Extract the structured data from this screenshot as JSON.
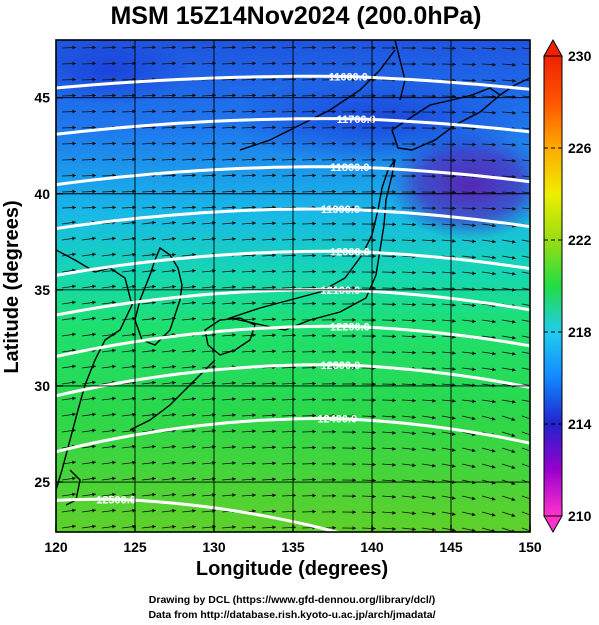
{
  "title": "MSM 15Z14Nov2024 (200.0hPa)",
  "xaxis": {
    "label": "Longitude (degrees)",
    "min": 120,
    "max": 150,
    "ticks": [
      "120",
      "125",
      "130",
      "135",
      "140",
      "145",
      "150"
    ]
  },
  "yaxis": {
    "label": "Latitude  (degrees)",
    "min": 22.4,
    "max": 48,
    "ticks": [
      "25",
      "30",
      "35",
      "40",
      "45"
    ]
  },
  "colorbar": {
    "min": 210,
    "max": 230,
    "labels": [
      "230",
      "226",
      "222",
      "218",
      "214",
      "210"
    ],
    "colors": [
      "#ff33cc",
      "#9900cc",
      "#3322cc",
      "#1166ff",
      "#22ccee",
      "#22dd66",
      "#33cc22",
      "#99dd11",
      "#eeee00",
      "#ffaa00",
      "#ff5500",
      "#ee2200"
    ]
  },
  "credits": {
    "line1": "Drawing by DCL (https://www.gfd-dennou.org/library/dcl/)",
    "line2": "Data from http://database.rish.kyoto-u.ac.jp/arch/jmadata/"
  },
  "chart_data": {
    "type": "heatmap",
    "title": "MSM 15Z14Nov2024 (200.0hPa)",
    "xlabel": "Longitude (degrees)",
    "ylabel": "Latitude  (degrees)",
    "xlim": [
      120,
      150
    ],
    "ylim": [
      22.4,
      48
    ],
    "contours": [
      {
        "label": "11600.0",
        "lon": 138.5,
        "lat": 46.1
      },
      {
        "label": "11700.0",
        "lon": 139.0,
        "lat": 43.9
      },
      {
        "label": "11800.0",
        "lon": 138.6,
        "lat": 41.4
      },
      {
        "label": "11900.0",
        "lon": 138.0,
        "lat": 39.2
      },
      {
        "label": "12000.0",
        "lon": 138.6,
        "lat": 37.0
      },
      {
        "label": "12100.0",
        "lon": 138.0,
        "lat": 35.0
      },
      {
        "label": "12200.0",
        "lon": 138.6,
        "lat": 33.1
      },
      {
        "label": "12300.0",
        "lon": 138.0,
        "lat": 31.1
      },
      {
        "label": "12400.0",
        "lon": 137.8,
        "lat": 28.3
      },
      {
        "label": "12500.0",
        "lon": 123.8,
        "lat": 24.1
      }
    ]
  }
}
